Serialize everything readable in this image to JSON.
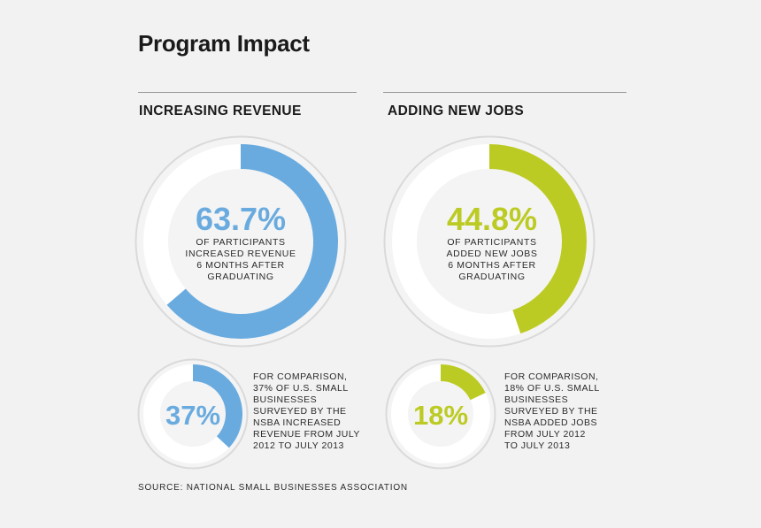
{
  "title": "Program Impact",
  "source": "SOURCE: NATIONAL SMALL BUSINESSES ASSOCIATION",
  "colors": {
    "revenue": "#6aabdf",
    "jobs": "#bccb24",
    "track": "#ffffff",
    "ring": "#dadada"
  },
  "chart_data": [
    {
      "type": "pie",
      "section": "INCREASING REVENUE",
      "value": 63.7,
      "value_label": "63.7%",
      "description": "OF PARTICIPANTS\nINCREASED REVENUE\n6 MONTHS AFTER\nGRADUATING",
      "comparison": {
        "value": 37,
        "value_label": "37%",
        "text": "FOR COMPARISON,\n37% OF U.S. SMALL\nBUSINESSES\nSURVEYED BY THE\nNSBA INCREASED\nREVENUE FROM JULY\n2012 TO JULY 2013"
      }
    },
    {
      "type": "pie",
      "section": "ADDING NEW JOBS",
      "value": 44.8,
      "value_label": "44.8%",
      "description": "OF PARTICIPANTS\nADDED NEW JOBS\n6 MONTHS AFTER\nGRADUATING",
      "comparison": {
        "value": 18,
        "value_label": "18%",
        "text": "FOR COMPARISON,\n18% OF U.S. SMALL\nBUSINESSES\nSURVEYED BY THE\nNSBA ADDED JOBS\nFROM JULY 2012\nTO JULY 2013"
      }
    }
  ]
}
